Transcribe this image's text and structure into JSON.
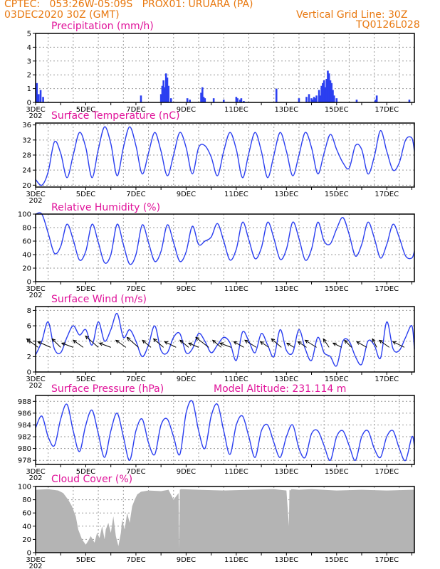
{
  "header": {
    "line1_left": "CPTEC:   053:26W-05:09S   PROX01: URUARA (PA)",
    "line2_left": "03DEC2020 30Z (GMT)",
    "line2_right": "Vertical Grid Line: 30Z",
    "line3_right": "TQ0126L028"
  },
  "colors": {
    "title": "#e0139a",
    "header": "#e8780f",
    "series": "#2b3ff0",
    "cloud": "#b4b4b4",
    "vector": "#000000"
  },
  "x_tick_labels": [
    "3DEC",
    "5DEC",
    "7DEC",
    "9DEC",
    "11DEC",
    "13DEC",
    "15DEC",
    "17DEC"
  ],
  "year_fragment": "202",
  "panels": {
    "precip": {
      "title": "Precipitation (mm/h)"
    },
    "temp": {
      "title": "Surface Temperature (nC)"
    },
    "rh": {
      "title": "Relative Humidity (%)"
    },
    "wind": {
      "title": "Surface Wind (m/s)"
    },
    "pres": {
      "title": "Surface Pressure (hPa)",
      "extra": "Model Altitude: 231.114 m"
    },
    "cloud": {
      "title": "Cloud Cover (%)"
    }
  },
  "chart_data": [
    {
      "id": "precip",
      "type": "bar",
      "title": "Precipitation (mm/h)",
      "ylim": [
        0,
        5
      ],
      "yticks": [
        0,
        1,
        2,
        3,
        4,
        5
      ],
      "xlim": [
        3.0,
        18.1
      ],
      "x": [
        3.05,
        3.12,
        3.2,
        3.3,
        7.2,
        8.0,
        8.05,
        8.1,
        8.15,
        8.2,
        8.25,
        8.3,
        8.4,
        9.05,
        9.15,
        9.6,
        9.65,
        9.7,
        9.75,
        10.1,
        10.5,
        11.0,
        11.05,
        11.15,
        11.2,
        11.3,
        12.6,
        13.5,
        13.8,
        13.9,
        14.0,
        14.05,
        14.1,
        14.15,
        14.2,
        14.3,
        14.35,
        14.4,
        14.45,
        14.5,
        14.55,
        14.6,
        14.65,
        14.7,
        14.75,
        14.8,
        14.85,
        14.9,
        15.0,
        15.8,
        16.55,
        16.6,
        17.9
      ],
      "values": [
        1.4,
        0.6,
        0.9,
        0.4,
        0.5,
        0.6,
        1.2,
        1.6,
        1.1,
        2.1,
        1.8,
        1.2,
        0.3,
        0.3,
        0.2,
        0.7,
        1.1,
        0.4,
        0.3,
        0.3,
        0.2,
        0.4,
        0.3,
        0.2,
        0.3,
        0.1,
        1.0,
        0.3,
        0.4,
        0.6,
        0.3,
        0.2,
        0.4,
        0.3,
        0.5,
        0.9,
        0.5,
        1.2,
        1.4,
        1.6,
        1.1,
        1.7,
        2.3,
        2.1,
        1.6,
        1.4,
        0.9,
        0.5,
        0.3,
        0.2,
        0.2,
        0.5,
        0.2
      ],
      "grid": true
    },
    {
      "id": "temp",
      "type": "line",
      "title": "Surface Temperature (nC)",
      "ylim": [
        19.5,
        36.5
      ],
      "yticks": [
        20,
        24,
        28,
        32,
        36
      ],
      "xlim": [
        3.0,
        18.1
      ],
      "x": [
        3.0,
        3.25,
        3.5,
        3.75,
        4.0,
        4.25,
        4.5,
        4.75,
        5.0,
        5.25,
        5.5,
        5.75,
        6.0,
        6.25,
        6.5,
        6.75,
        7.0,
        7.25,
        7.5,
        7.75,
        8.0,
        8.25,
        8.5,
        8.75,
        9.0,
        9.25,
        9.5,
        9.75,
        10.0,
        10.25,
        10.5,
        10.75,
        11.0,
        11.25,
        11.5,
        11.75,
        12.0,
        12.25,
        12.5,
        12.75,
        13.0,
        13.25,
        13.5,
        13.75,
        14.0,
        14.25,
        14.5,
        14.75,
        15.0,
        15.25,
        15.5,
        15.75,
        16.0,
        16.25,
        16.5,
        16.75,
        17.0,
        17.25,
        17.5,
        17.75,
        18.0,
        18.1
      ],
      "values": [
        21.5,
        20.0,
        23.5,
        31.5,
        28.5,
        22.0,
        28.0,
        34.0,
        30.0,
        22.0,
        29.5,
        35.5,
        31.0,
        22.5,
        30.0,
        35.5,
        30.5,
        23.0,
        28.5,
        34.0,
        29.0,
        22.5,
        28.0,
        34.0,
        30.0,
        23.0,
        30.0,
        30.5,
        27.5,
        22.5,
        29.0,
        34.0,
        29.5,
        22.0,
        28.5,
        34.0,
        29.0,
        22.0,
        28.0,
        34.0,
        29.0,
        22.5,
        28.0,
        34.0,
        30.0,
        23.0,
        28.5,
        33.5,
        29.5,
        26.0,
        24.5,
        30.5,
        29.5,
        23.0,
        27.5,
        34.5,
        29.0,
        24.0,
        26.0,
        32.0,
        32.5,
        29.0
      ],
      "grid": true
    },
    {
      "id": "rh",
      "type": "line",
      "title": "Relative Humidity (%)",
      "ylim": [
        0,
        100
      ],
      "yticks": [
        0,
        20,
        40,
        60,
        80,
        100
      ],
      "xlim": [
        3.0,
        18.1
      ],
      "x": [
        3.0,
        3.25,
        3.5,
        3.75,
        4.0,
        4.25,
        4.5,
        4.75,
        5.0,
        5.25,
        5.5,
        5.75,
        6.0,
        6.25,
        6.5,
        6.75,
        7.0,
        7.25,
        7.5,
        7.75,
        8.0,
        8.25,
        8.5,
        8.75,
        9.0,
        9.25,
        9.5,
        9.75,
        10.0,
        10.25,
        10.5,
        10.75,
        11.0,
        11.25,
        11.5,
        11.75,
        12.0,
        12.25,
        12.5,
        12.75,
        13.0,
        13.25,
        13.5,
        13.75,
        14.0,
        14.25,
        14.5,
        14.75,
        15.0,
        15.25,
        15.5,
        15.75,
        16.0,
        16.25,
        16.5,
        16.75,
        17.0,
        17.25,
        17.5,
        17.75,
        18.0,
        18.1
      ],
      "values": [
        100,
        100,
        72,
        42,
        52,
        85,
        62,
        32,
        45,
        85,
        58,
        28,
        40,
        85,
        55,
        26,
        40,
        84,
        58,
        30,
        45,
        84,
        58,
        30,
        44,
        82,
        55,
        60,
        66,
        86,
        60,
        32,
        48,
        88,
        62,
        34,
        50,
        88,
        64,
        33,
        48,
        88,
        64,
        32,
        48,
        88,
        60,
        56,
        78,
        95,
        70,
        38,
        55,
        88,
        65,
        35,
        55,
        85,
        65,
        38,
        35,
        45
      ],
      "grid": true
    },
    {
      "id": "wind",
      "type": "line",
      "title": "Surface Wind (m/s)",
      "ylim": [
        0,
        8.5
      ],
      "yticks": [
        0,
        2,
        4,
        6,
        8
      ],
      "xlim": [
        3.0,
        18.1
      ],
      "x": [
        3.0,
        3.25,
        3.5,
        3.75,
        4.0,
        4.25,
        4.5,
        4.75,
        5.0,
        5.25,
        5.5,
        5.75,
        6.0,
        6.25,
        6.5,
        6.75,
        7.0,
        7.25,
        7.5,
        7.75,
        8.0,
        8.25,
        8.5,
        8.75,
        9.0,
        9.25,
        9.5,
        9.75,
        10.0,
        10.25,
        10.5,
        10.75,
        11.0,
        11.25,
        11.5,
        11.75,
        12.0,
        12.25,
        12.5,
        12.75,
        13.0,
        13.25,
        13.5,
        13.75,
        14.0,
        14.25,
        14.5,
        14.75,
        15.0,
        15.25,
        15.5,
        15.75,
        16.0,
        16.25,
        16.5,
        16.75,
        17.0,
        17.25,
        17.5,
        17.75,
        18.0,
        18.1
      ],
      "values": [
        2.2,
        4.0,
        6.5,
        3.0,
        2.5,
        4.5,
        6.0,
        4.8,
        5.5,
        3.5,
        6.5,
        4.0,
        5.5,
        7.6,
        4.5,
        5.5,
        4.0,
        2.0,
        3.5,
        6.0,
        2.8,
        2.5,
        4.5,
        5.0,
        2.5,
        3.0,
        5.0,
        4.0,
        2.5,
        3.5,
        4.5,
        3.8,
        1.5,
        5.2,
        4.0,
        2.5,
        5.0,
        3.5,
        2.0,
        5.5,
        2.8,
        2.5,
        5.5,
        3.0,
        1.5,
        4.5,
        2.5,
        2.0,
        0.8,
        4.0,
        4.0,
        2.0,
        1.0,
        4.0,
        3.5,
        1.8,
        6.5,
        3.0,
        2.8,
        4.5,
        6.0,
        3.0
      ],
      "vectors": {
        "x": [
          3.1,
          3.6,
          4.0,
          4.5,
          4.9,
          5.5,
          6.0,
          6.6,
          7.1,
          7.6,
          8.1,
          8.6,
          9.1,
          9.5,
          9.9,
          10.4,
          10.8,
          11.3,
          11.8,
          12.3,
          12.8,
          13.3,
          13.8,
          14.2,
          14.7,
          15.2,
          15.6,
          16.2,
          16.6,
          17.1,
          17.7
        ],
        "u": [
          -0.8,
          -0.9,
          -0.6,
          -0.8,
          -0.7,
          -0.9,
          -0.8,
          -0.7,
          -0.8,
          -0.6,
          -0.7,
          -0.8,
          -0.6,
          -0.7,
          -0.9,
          -0.6,
          -0.8,
          -0.7,
          -0.8,
          -0.6,
          -0.7,
          -0.5,
          -0.6,
          -0.8,
          -0.4,
          -0.6,
          -0.5,
          -0.7,
          -0.3,
          -0.7,
          -0.8
        ],
        "v": [
          0.6,
          0.4,
          0.6,
          0.3,
          0.5,
          0.8,
          0.3,
          0.5,
          0.7,
          0.5,
          0.6,
          0.4,
          0.5,
          0.3,
          0.7,
          0.5,
          0.3,
          0.4,
          0.5,
          0.4,
          0.6,
          0.3,
          0.4,
          0.5,
          0.6,
          0.3,
          0.5,
          0.4,
          0.6,
          0.5,
          0.4
        ]
      },
      "grid": true
    },
    {
      "id": "pres",
      "type": "line",
      "title": "Surface Pressure (hPa)",
      "annotation": "Model Altitude: 231.114 m",
      "ylim": [
        977.3,
        989.0
      ],
      "yticks": [
        978,
        980,
        982,
        984,
        986,
        988
      ],
      "xlim": [
        3.0,
        18.1
      ],
      "x": [
        3.0,
        3.25,
        3.5,
        3.75,
        4.0,
        4.25,
        4.5,
        4.75,
        5.0,
        5.25,
        5.5,
        5.75,
        6.0,
        6.25,
        6.5,
        6.75,
        7.0,
        7.25,
        7.5,
        7.75,
        8.0,
        8.25,
        8.5,
        8.75,
        9.0,
        9.25,
        9.5,
        9.75,
        10.0,
        10.25,
        10.5,
        10.75,
        11.0,
        11.25,
        11.5,
        11.75,
        12.0,
        12.25,
        12.5,
        12.75,
        13.0,
        13.25,
        13.5,
        13.75,
        14.0,
        14.25,
        14.5,
        14.75,
        15.0,
        15.25,
        15.5,
        15.75,
        16.0,
        16.25,
        16.5,
        16.75,
        17.0,
        17.25,
        17.5,
        17.75,
        18.0,
        18.1
      ],
      "values": [
        983.5,
        985.5,
        982.0,
        980.5,
        985.0,
        987.5,
        983.0,
        979.5,
        984.0,
        986.5,
        982.5,
        978.5,
        983.0,
        986.0,
        982.0,
        978.0,
        983.0,
        985.0,
        981.0,
        979.0,
        984.0,
        985.0,
        982.0,
        979.0,
        986.0,
        988.0,
        983.0,
        980.0,
        985.5,
        987.5,
        983.0,
        979.0,
        984.0,
        985.5,
        982.0,
        978.5,
        983.0,
        984.0,
        981.0,
        978.5,
        982.0,
        984.0,
        980.0,
        978.5,
        982.5,
        983.0,
        980.5,
        978.0,
        982.0,
        983.0,
        980.5,
        978.0,
        982.0,
        983.0,
        980.0,
        978.5,
        982.0,
        983.0,
        980.0,
        978.0,
        982.0,
        980.5
      ],
      "grid": true
    },
    {
      "id": "cloud",
      "type": "area",
      "title": "Cloud Cover (%)",
      "ylim": [
        0,
        100
      ],
      "yticks": [
        0,
        20,
        40,
        60,
        80,
        100
      ],
      "xlim": [
        3.0,
        18.1
      ],
      "x": [
        3.0,
        3.5,
        3.9,
        4.1,
        4.3,
        4.45,
        4.6,
        4.7,
        4.85,
        5.0,
        5.1,
        5.2,
        5.35,
        5.45,
        5.55,
        5.65,
        5.75,
        5.8,
        5.9,
        6.0,
        6.1,
        6.2,
        6.3,
        6.4,
        6.45,
        6.55,
        6.65,
        6.75,
        6.85,
        6.95,
        7.05,
        7.2,
        7.5,
        8.0,
        8.3,
        8.5,
        8.7,
        8.72,
        8.75,
        8.8,
        9.5,
        10.5,
        11.5,
        12.5,
        13.0,
        13.1,
        13.12,
        13.15,
        13.2,
        13.5,
        14.0,
        15.0,
        16.0,
        17.0,
        18.0,
        18.1
      ],
      "values": [
        95,
        96,
        94,
        90,
        80,
        70,
        55,
        35,
        20,
        12,
        18,
        25,
        15,
        30,
        22,
        40,
        20,
        35,
        45,
        30,
        55,
        25,
        10,
        30,
        50,
        35,
        60,
        45,
        70,
        80,
        88,
        92,
        94,
        93,
        95,
        80,
        90,
        5,
        95,
        96,
        95,
        94,
        95,
        96,
        94,
        40,
        95,
        94,
        96,
        95,
        96,
        94,
        95,
        94,
        95,
        95
      ],
      "grid": true
    }
  ]
}
